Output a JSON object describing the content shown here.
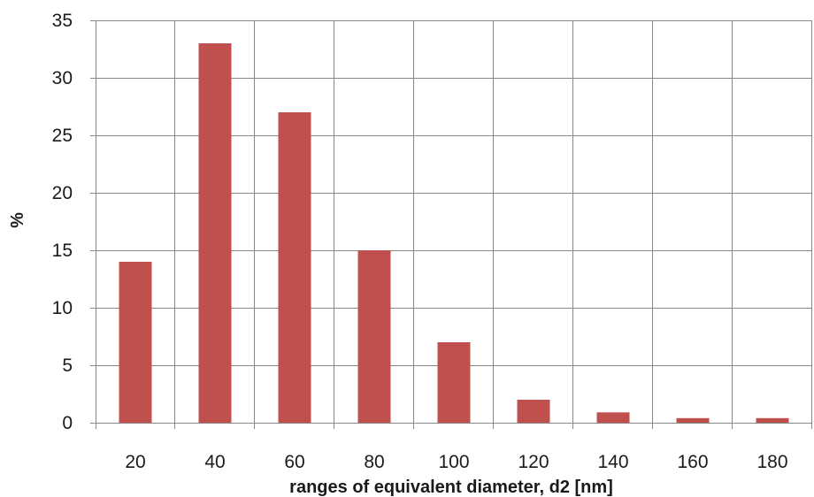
{
  "chart_data": {
    "type": "bar",
    "categories": [
      "20",
      "40",
      "60",
      "80",
      "100",
      "120",
      "140",
      "160",
      "180"
    ],
    "values": [
      14,
      33,
      27,
      15,
      7,
      2,
      0.9,
      0.4,
      0.4
    ],
    "title": "",
    "xlabel": "ranges of equivalent diameter, d2 [nm]",
    "ylabel": "%",
    "ylim": [
      0,
      35
    ],
    "yticks": [
      0,
      5,
      10,
      15,
      20,
      25,
      30,
      35
    ],
    "grid": true,
    "legend": "none",
    "colors": {
      "bar": "#c0504d",
      "grid": "#868686",
      "axis": "#868686",
      "text": "#1a1a1a"
    }
  }
}
